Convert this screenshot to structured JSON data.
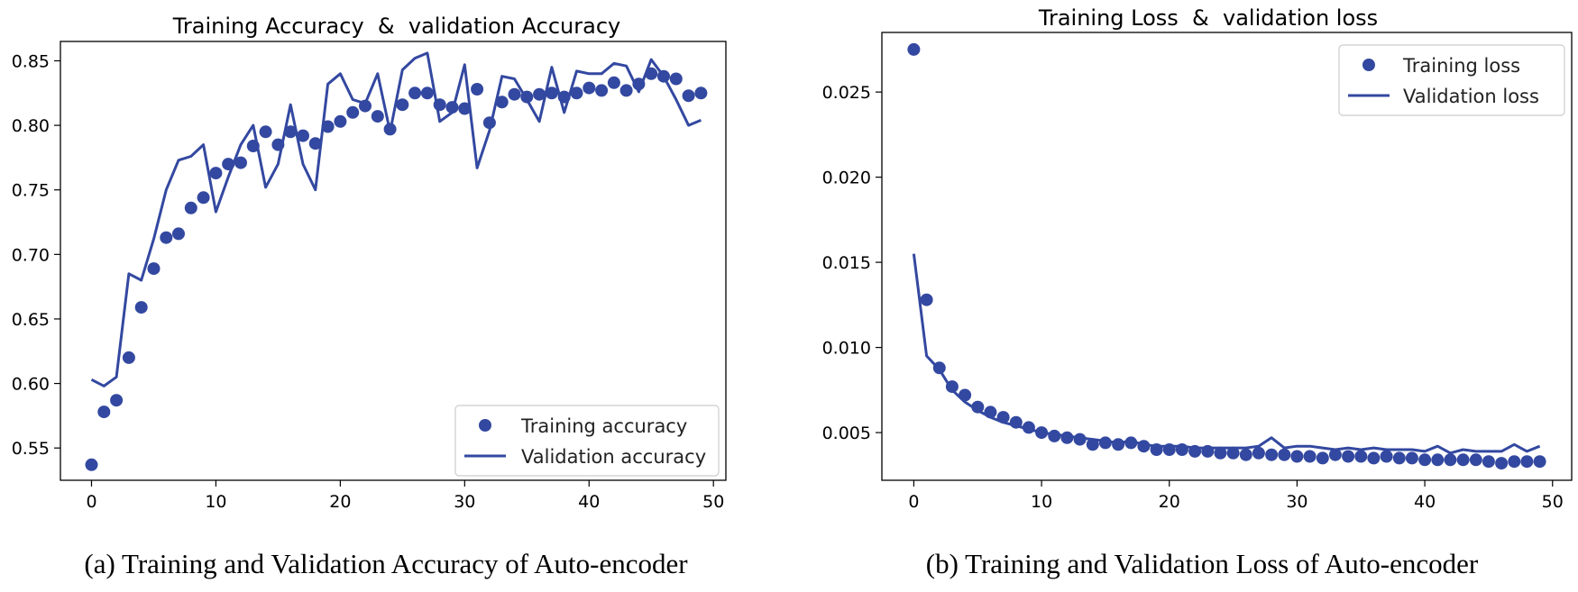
{
  "chart_data": [
    {
      "type": "line",
      "title": "Training Accuracy  &  validation Accuracy",
      "caption": "(a) Training and Validation Accuracy of Auto-encoder",
      "xlabel": "",
      "ylabel": "",
      "xlim": [
        -2.5,
        51
      ],
      "ylim": [
        0.525,
        0.865
      ],
      "xticks": [
        0,
        10,
        20,
        30,
        40,
        50
      ],
      "xtick_labels": [
        "0",
        "10",
        "20",
        "30",
        "40",
        "50"
      ],
      "yticks": [
        0.55,
        0.6,
        0.65,
        0.7,
        0.75,
        0.8,
        0.85
      ],
      "ytick_labels": [
        "0.55",
        "0.60",
        "0.65",
        "0.70",
        "0.75",
        "0.80",
        "0.85"
      ],
      "legend_position": "lower-right",
      "color": "#3348a0",
      "series": [
        {
          "name": "Training accuracy",
          "style": "markers",
          "x": [
            0,
            1,
            2,
            3,
            4,
            5,
            6,
            7,
            8,
            9,
            10,
            11,
            12,
            13,
            14,
            15,
            16,
            17,
            18,
            19,
            20,
            21,
            22,
            23,
            24,
            25,
            26,
            27,
            28,
            29,
            30,
            31,
            32,
            33,
            34,
            35,
            36,
            37,
            38,
            39,
            40,
            41,
            42,
            43,
            44,
            45,
            46,
            47,
            48,
            49
          ],
          "values": [
            0.537,
            0.578,
            0.587,
            0.62,
            0.659,
            0.689,
            0.713,
            0.716,
            0.736,
            0.744,
            0.763,
            0.77,
            0.771,
            0.784,
            0.795,
            0.785,
            0.795,
            0.792,
            0.786,
            0.799,
            0.803,
            0.81,
            0.815,
            0.807,
            0.797,
            0.816,
            0.825,
            0.825,
            0.816,
            0.814,
            0.813,
            0.828,
            0.802,
            0.818,
            0.824,
            0.822,
            0.824,
            0.825,
            0.822,
            0.825,
            0.829,
            0.827,
            0.833,
            0.827,
            0.832,
            0.84,
            0.838,
            0.836,
            0.823,
            0.825
          ]
        },
        {
          "name": "Validation accuracy",
          "style": "line",
          "x": [
            0,
            1,
            2,
            3,
            4,
            5,
            6,
            7,
            8,
            9,
            10,
            11,
            12,
            13,
            14,
            15,
            16,
            17,
            18,
            19,
            20,
            21,
            22,
            23,
            24,
            25,
            26,
            27,
            28,
            29,
            30,
            31,
            32,
            33,
            34,
            35,
            36,
            37,
            38,
            39,
            40,
            41,
            42,
            43,
            44,
            45,
            46,
            47,
            48,
            49
          ],
          "values": [
            0.603,
            0.598,
            0.605,
            0.685,
            0.68,
            0.712,
            0.75,
            0.773,
            0.776,
            0.785,
            0.733,
            0.76,
            0.785,
            0.8,
            0.752,
            0.77,
            0.816,
            0.77,
            0.75,
            0.832,
            0.84,
            0.82,
            0.817,
            0.84,
            0.795,
            0.843,
            0.852,
            0.856,
            0.803,
            0.81,
            0.847,
            0.767,
            0.796,
            0.838,
            0.836,
            0.82,
            0.803,
            0.845,
            0.81,
            0.842,
            0.84,
            0.84,
            0.848,
            0.846,
            0.826,
            0.851,
            0.838,
            0.82,
            0.8,
            0.804
          ]
        }
      ]
    },
    {
      "type": "line",
      "title": "Training Loss  &  validation loss",
      "caption": "(b) Training and Validation Loss of Auto-encoder",
      "xlabel": "",
      "ylabel": "",
      "xlim": [
        -2.5,
        51.5
      ],
      "ylim": [
        0.0022,
        0.0285
      ],
      "xticks": [
        0,
        10,
        20,
        30,
        40,
        50
      ],
      "xtick_labels": [
        "0",
        "10",
        "20",
        "30",
        "40",
        "50"
      ],
      "yticks": [
        0.005,
        0.01,
        0.015,
        0.02,
        0.025
      ],
      "ytick_labels": [
        "0.005",
        "0.010",
        "0.015",
        "0.020",
        "0.025"
      ],
      "legend_position": "top-right",
      "color": "#3348a0",
      "series": [
        {
          "name": "Training loss",
          "style": "markers",
          "x": [
            0,
            1,
            2,
            3,
            4,
            5,
            6,
            7,
            8,
            9,
            10,
            11,
            12,
            13,
            14,
            15,
            16,
            17,
            18,
            19,
            20,
            21,
            22,
            23,
            24,
            25,
            26,
            27,
            28,
            29,
            30,
            31,
            32,
            33,
            34,
            35,
            36,
            37,
            38,
            39,
            40,
            41,
            42,
            43,
            44,
            45,
            46,
            47,
            48,
            49
          ],
          "values": [
            0.0275,
            0.0128,
            0.0088,
            0.0077,
            0.0072,
            0.0065,
            0.0062,
            0.0059,
            0.0056,
            0.0053,
            0.005,
            0.0048,
            0.0047,
            0.0046,
            0.0043,
            0.0044,
            0.0043,
            0.0044,
            0.0042,
            0.004,
            0.004,
            0.004,
            0.0039,
            0.0039,
            0.0038,
            0.0038,
            0.0037,
            0.0038,
            0.0037,
            0.0037,
            0.0036,
            0.0036,
            0.0035,
            0.0037,
            0.0036,
            0.0036,
            0.0035,
            0.0036,
            0.0035,
            0.0035,
            0.0034,
            0.0034,
            0.0034,
            0.0034,
            0.0034,
            0.0033,
            0.0032,
            0.0033,
            0.0033,
            0.0033
          ]
        },
        {
          "name": "Validation loss",
          "style": "line",
          "x": [
            0,
            1,
            2,
            3,
            4,
            5,
            6,
            7,
            8,
            9,
            10,
            11,
            12,
            13,
            14,
            15,
            16,
            17,
            18,
            19,
            20,
            21,
            22,
            23,
            24,
            25,
            26,
            27,
            28,
            29,
            30,
            31,
            32,
            33,
            34,
            35,
            36,
            37,
            38,
            39,
            40,
            41,
            42,
            43,
            44,
            45,
            46,
            47,
            48,
            49
          ],
          "values": [
            0.0155,
            0.0095,
            0.0087,
            0.0075,
            0.0068,
            0.0063,
            0.0059,
            0.0056,
            0.0054,
            0.0052,
            0.005,
            0.0049,
            0.0048,
            0.0047,
            0.0046,
            0.0045,
            0.0044,
            0.0045,
            0.0043,
            0.0042,
            0.0042,
            0.0042,
            0.0041,
            0.0041,
            0.0041,
            0.0041,
            0.0041,
            0.0042,
            0.0047,
            0.0041,
            0.0042,
            0.0042,
            0.0041,
            0.004,
            0.0041,
            0.004,
            0.0041,
            0.004,
            0.004,
            0.004,
            0.0039,
            0.0042,
            0.0038,
            0.004,
            0.0039,
            0.0039,
            0.0039,
            0.0043,
            0.0039,
            0.0042
          ]
        }
      ]
    }
  ]
}
